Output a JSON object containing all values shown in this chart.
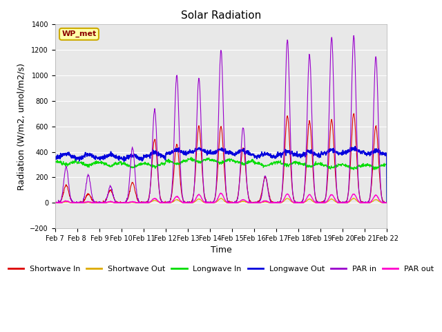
{
  "title": "Solar Radiation",
  "ylabel": "Radiation (W/m2, umol/m2/s)",
  "xlabel": "Time",
  "ylim": [
    -200,
    1400
  ],
  "yticks": [
    -200,
    0,
    200,
    400,
    600,
    800,
    1000,
    1200,
    1400
  ],
  "n_days": 15,
  "x_tick_labels": [
    "Feb 7",
    "Feb 8",
    "Feb 9",
    "Feb 10",
    "Feb 11",
    "Feb 12",
    "Feb 13",
    "Feb 14",
    "Feb 15",
    "Feb 16",
    "Feb 17",
    "Feb 18",
    "Feb 19",
    "Feb 20",
    "Feb 21",
    "Feb 22"
  ],
  "station_label": "WP_met",
  "legend_entries": [
    "Shortwave In",
    "Shortwave Out",
    "Longwave In",
    "Longwave Out",
    "PAR in",
    "PAR out"
  ],
  "colors": {
    "Shortwave In": "#dd0000",
    "Shortwave Out": "#ddaa00",
    "Longwave In": "#00dd00",
    "Longwave Out": "#0000dd",
    "PAR in": "#9900cc",
    "PAR out": "#ff00cc"
  },
  "background_color": "#e8e8e8",
  "title_fontsize": 11,
  "axis_fontsize": 9,
  "tick_fontsize": 7,
  "legend_fontsize": 8,
  "par_in_peaks": [
    280,
    220,
    130,
    430,
    730,
    1000,
    980,
    1200,
    590,
    210,
    1280,
    1160,
    1300,
    1310,
    1150
  ],
  "sw_in_peaks": [
    140,
    70,
    100,
    160,
    500,
    460,
    600,
    600,
    430,
    200,
    680,
    640,
    650,
    700,
    600
  ],
  "par_out_peaks": [
    15,
    8,
    10,
    8,
    35,
    50,
    65,
    75,
    25,
    15,
    70,
    65,
    65,
    70,
    60
  ],
  "sw_out_peaks": [
    8,
    4,
    6,
    4,
    20,
    25,
    30,
    35,
    12,
    8,
    35,
    30,
    30,
    35,
    25
  ],
  "lw_in_base": [
    325,
    320,
    315,
    305,
    310,
    330,
    345,
    340,
    330,
    315,
    320,
    310,
    300,
    295,
    300
  ],
  "lw_out_base": [
    355,
    350,
    350,
    345,
    365,
    385,
    395,
    390,
    380,
    360,
    375,
    370,
    385,
    395,
    380
  ],
  "n_per_day": 96,
  "noise_seed": 42
}
